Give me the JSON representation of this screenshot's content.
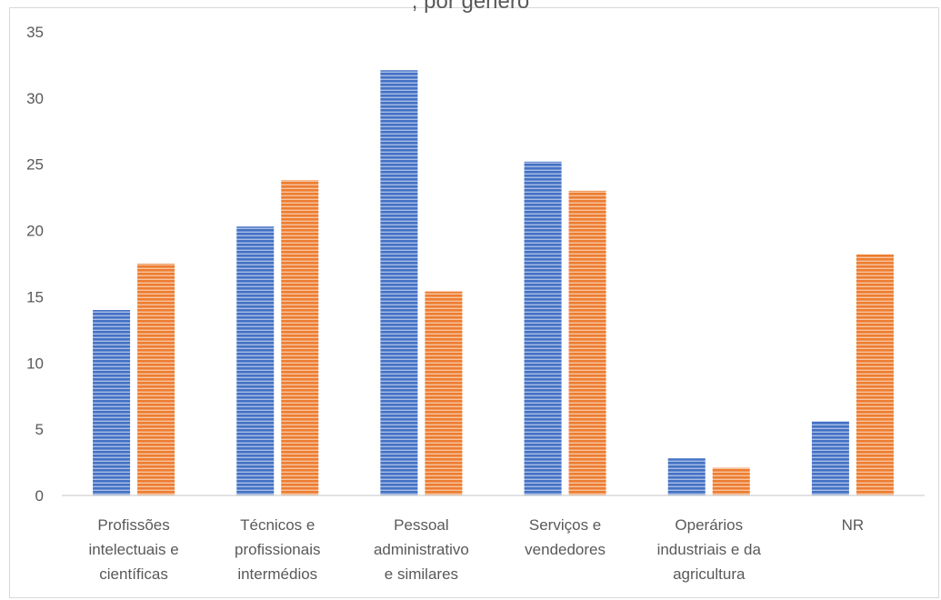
{
  "chart_data": {
    "type": "bar",
    "title": ", por género",
    "xlabel": "",
    "ylabel": "",
    "ylim": [
      0,
      35
    ],
    "yticks": [
      0,
      5,
      10,
      15,
      20,
      25,
      30,
      35
    ],
    "grid": false,
    "legend": "none",
    "categories": [
      [
        "Profissões",
        "intelectuais e",
        "científicas"
      ],
      [
        "Técnicos e",
        "profissionais",
        "intermédios"
      ],
      [
        "Pessoal",
        "administrativo",
        "e similares"
      ],
      [
        "Serviços e",
        "vendedores"
      ],
      [
        "Operários",
        "industriais e da",
        "agricultura"
      ],
      [
        "NR"
      ]
    ],
    "series": [
      {
        "values": [
          14.0,
          20.3,
          32.1,
          25.2,
          2.8,
          5.6
        ],
        "color": "#4472c4"
      },
      {
        "values": [
          17.5,
          23.8,
          15.4,
          23.0,
          2.1,
          18.2
        ],
        "color": "#ed7d31"
      }
    ]
  }
}
